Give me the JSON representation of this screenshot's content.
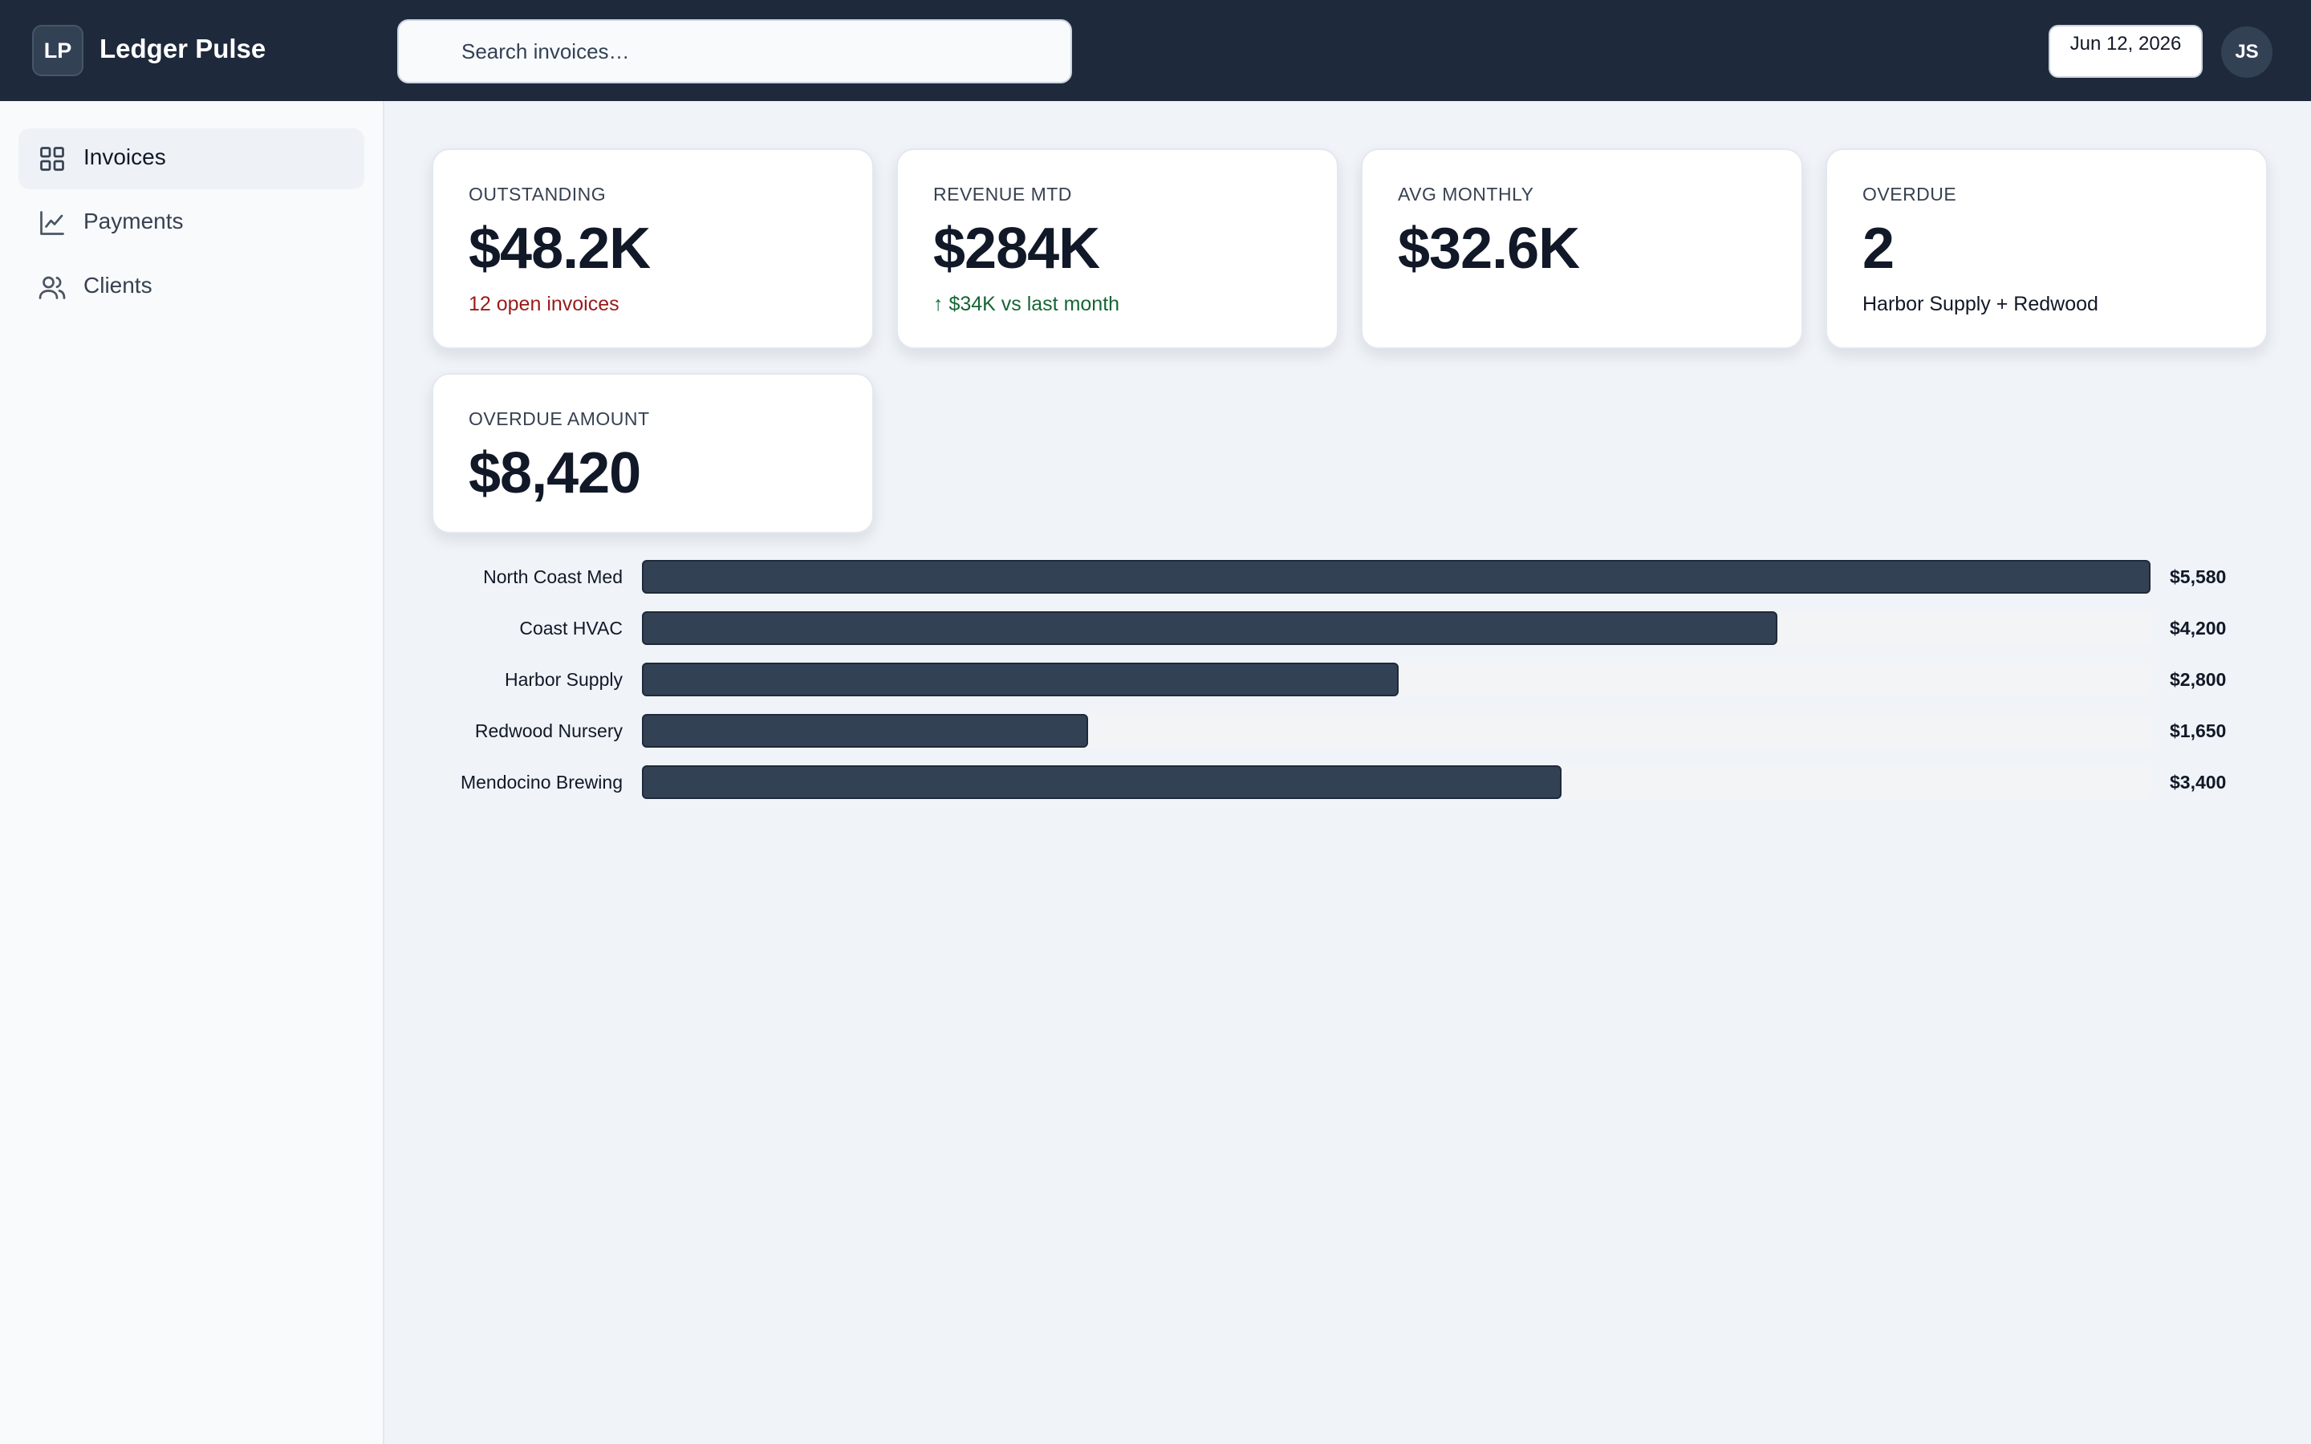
{
  "header": {
    "logo": "LP",
    "title": "Ledger Pulse",
    "search_placeholder": "Search invoices…",
    "date": "Jun 12, 2026",
    "avatar": "JS"
  },
  "sidebar": {
    "items": [
      {
        "label": "Invoices",
        "icon": "grid-icon",
        "active": true
      },
      {
        "label": "Payments",
        "icon": "line-chart-icon",
        "active": false
      },
      {
        "label": "Clients",
        "icon": "users-icon",
        "active": false
      }
    ]
  },
  "kpis": [
    {
      "label": "OUTSTANDING",
      "value": "$48.2K",
      "sub": "12 open invoices",
      "tone": "neg"
    },
    {
      "label": "REVENUE MTD",
      "value": "$284K",
      "sub": "↑ $34K vs last month",
      "tone": "pos"
    },
    {
      "label": "AVG MONTHLY",
      "value": "$32.6K",
      "sub": "",
      "tone": "neutral"
    },
    {
      "label": "OVERDUE",
      "value": "2",
      "sub": "Harbor Supply + Redwood",
      "tone": "neutral"
    },
    {
      "label": "OVERDUE AMOUNT",
      "value": "$8,420",
      "sub": "",
      "tone": "neutral"
    }
  ],
  "chart_data": {
    "type": "bar",
    "orientation": "horizontal",
    "categories": [
      "North Coast Med",
      "Coast HVAC",
      "Harbor Supply",
      "Redwood Nursery",
      "Mendocino Brewing"
    ],
    "values": [
      5580,
      4200,
      2800,
      1650,
      3400
    ],
    "value_labels": [
      "$5,580",
      "$4,200",
      "$2,800",
      "$1,650",
      "$3,400"
    ],
    "xlim": [
      0,
      5580
    ],
    "grid": false,
    "colors": {
      "bar": "#334155",
      "track": "#f3f4f6"
    }
  },
  "colors": {
    "topbar": "#1e293b",
    "negative": "#991b1b",
    "positive": "#166534"
  }
}
